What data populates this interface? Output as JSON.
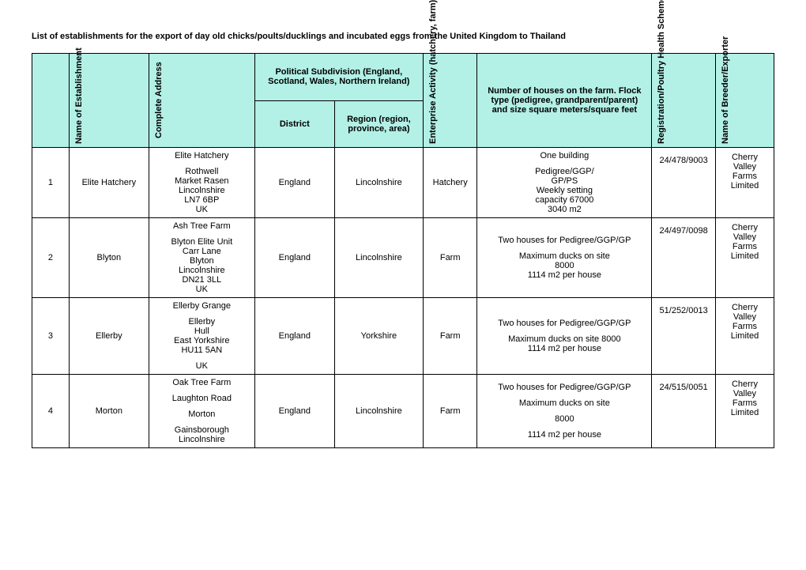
{
  "title": "List of establishments for the export of day old chicks/poults/ducklings and incubated eggs from the United Kingdom to Thailand",
  "headers": {
    "blank": "",
    "name": "Name of Establishment",
    "address": "Complete Address",
    "political": "Political Subdivision (England, Scotland, Wales, Northern Ireland)",
    "district": "District",
    "region": "Region (region, province, area)",
    "activity": "Enterprise Activity (hatchery, farm)",
    "houses": "Number of houses on the farm. Flock type (pedigree, grandparent/parent) and size square meters/square feet",
    "reg": "Registration/Poultry Health Scheme Number",
    "breeder": "Name of Breeder/Exporter"
  },
  "rows": [
    {
      "num": "1",
      "name": "Elite Hatchery",
      "addr": [
        "Elite Hatchery",
        "",
        "Rothwell",
        "Market Rasen",
        "Lincolnshire",
        "LN7 6BP",
        "UK"
      ],
      "district": "England",
      "region": "Lincolnshire",
      "activity": "Hatchery",
      "houses": [
        "One building",
        "",
        "Pedigree/GGP/",
        "GP/PS",
        "Weekly setting",
        "capacity 67000",
        "3040 m2"
      ],
      "reg": "24/478/9003",
      "breeder": "Cherry Valley Farms Limited"
    },
    {
      "num": "2",
      "name": "Blyton",
      "addr": [
        "Ash Tree Farm",
        "",
        "Blyton Elite Unit",
        "Carr Lane",
        "Blyton",
        "Lincolnshire",
        "DN21 3LL",
        "UK"
      ],
      "district": "England",
      "region": "Lincolnshire",
      "activity": "Farm",
      "houses": [
        "Two houses for Pedigree/GGP/GP",
        "",
        "Maximum ducks on site",
        "8000",
        "1114 m2 per house"
      ],
      "reg": "24/497/0098",
      "breeder": "Cherry Valley Farms Limited"
    },
    {
      "num": "3",
      "name": "Ellerby",
      "addr": [
        "Ellerby Grange",
        "",
        "Ellerby",
        "Hull",
        "East Yorkshire",
        "HU11 5AN",
        "",
        "UK"
      ],
      "district": "England",
      "region": "Yorkshire",
      "activity": "Farm",
      "houses": [
        "Two houses for Pedigree/GGP/GP",
        "",
        "Maximum ducks on site 8000",
        "1114 m2 per house"
      ],
      "reg": "51/252/0013",
      "breeder": "Cherry Valley Farms Limited"
    },
    {
      "num": "4",
      "name": "Morton",
      "addr": [
        "Oak Tree Farm",
        "",
        "Laughton Road",
        "",
        "Morton",
        "",
        "Gainsborough",
        "Lincolnshire"
      ],
      "district": "England",
      "region": "Lincolnshire",
      "activity": "Farm",
      "houses": [
        "Two houses for Pedigree/GGP/GP",
        "",
        "Maximum ducks on site",
        "",
        "8000",
        "",
        "1114 m2 per house"
      ],
      "reg": "24/515/0051",
      "breeder": "Cherry Valley Farms Limited"
    }
  ]
}
